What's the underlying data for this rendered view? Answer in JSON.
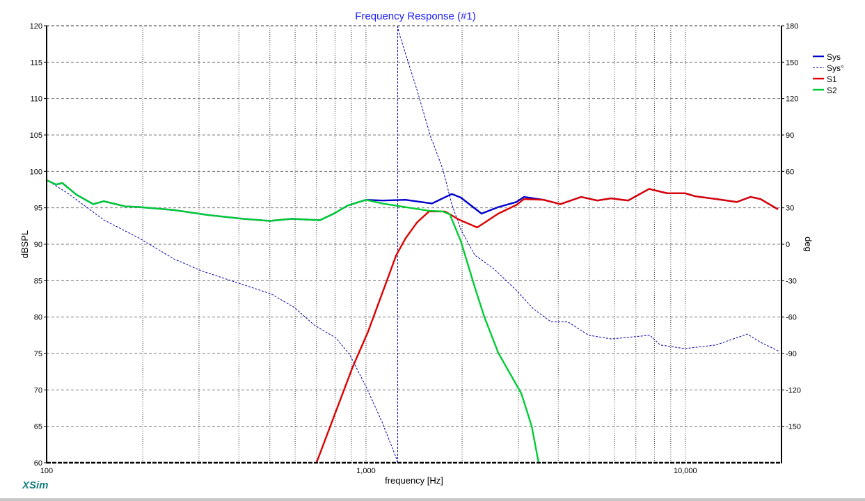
{
  "chart_data": {
    "type": "line",
    "title": "Frequency Response (#1)",
    "xlabel": "frequency [Hz]",
    "ylabel": "dBSPL",
    "y2label": "deg",
    "xscale": "log",
    "xlim": [
      100,
      20000
    ],
    "ylim": [
      60,
      120
    ],
    "y2lim": [
      -180,
      180
    ],
    "grid": true,
    "legend_position": "top-right",
    "x_tick_labels": [
      {
        "value": 100,
        "label": "100"
      },
      {
        "value": 1000,
        "label": "1,000"
      },
      {
        "value": 10000,
        "label": "10,000"
      }
    ],
    "y_ticks": [
      60,
      65,
      70,
      75,
      80,
      85,
      90,
      95,
      100,
      105,
      110,
      115,
      120
    ],
    "y2_ticks": [
      -150,
      -120,
      -90,
      -60,
      -30,
      0,
      30,
      60,
      90,
      120,
      150,
      180
    ],
    "series": [
      {
        "name": "Sys",
        "axis": "left",
        "color": "#0000cc",
        "style": "solid",
        "x": [
          100,
          107,
          112,
          124,
          140,
          151,
          165,
          176,
          195,
          250,
          321,
          412,
          500,
          585,
          717,
          793,
          875,
          1000,
          1125,
          1330,
          1610,
          1856,
          1982,
          2300,
          2595,
          2958,
          3125,
          3600,
          4060,
          4720,
          5300,
          5850,
          6620,
          7700,
          8760,
          9970,
          10700,
          12500,
          14500,
          16000,
          17200,
          19500
        ],
        "y": [
          98.8,
          98.2,
          98.4,
          96.8,
          95.5,
          95.9,
          95.5,
          95.2,
          95.1,
          94.7,
          94.0,
          93.5,
          93.2,
          93.5,
          93.3,
          94.2,
          95.3,
          96.1,
          96.0,
          96.1,
          95.6,
          96.9,
          96.4,
          94.2,
          95.1,
          95.8,
          96.5,
          96.1,
          95.5,
          96.5,
          96.0,
          96.3,
          96.0,
          97.6,
          97.0,
          97.0,
          96.6,
          96.2,
          95.8,
          96.5,
          96.2,
          94.8
        ]
      },
      {
        "name": "Sys°",
        "axis": "right",
        "color": "#0000aa",
        "style": "dashed",
        "x": [
          100,
          118,
          151,
          195,
          250,
          306,
          399,
          505,
          596,
          692,
          804,
          889,
          1003,
          1125,
          1244,
          1269,
          1445,
          1597,
          1740,
          1856,
          1982,
          2192,
          2508,
          2958,
          3337,
          3800,
          4288,
          4980,
          5875,
          7745,
          8350,
          9950,
          12470,
          14130,
          15630,
          17260,
          19580
        ],
        "y": [
          53,
          41,
          20,
          5,
          -12,
          -22,
          -32,
          -41,
          -52,
          -67,
          -77,
          -91,
          -118,
          -147,
          -176,
          174,
          127,
          88,
          62,
          33,
          12,
          -9,
          -20,
          -38,
          -53,
          -64,
          -64,
          -75,
          -78,
          -75,
          -83,
          -86,
          -83,
          -78,
          -74,
          -81,
          -88
        ]
      },
      {
        "name": "S1",
        "axis": "left",
        "color": "#dd0000",
        "style": "solid",
        "x": [
          700,
          793,
          906,
          1015,
          1125,
          1244,
          1330,
          1445,
          1575,
          1770,
          1950,
          2230,
          2595,
          2958,
          3125,
          3600,
          4060,
          4720,
          5300,
          5850,
          6620,
          7700,
          8760,
          9970,
          10700,
          12500,
          14500,
          16000,
          17200,
          19500
        ],
        "y": [
          60,
          66.3,
          73,
          78,
          83.3,
          88.5,
          90.8,
          93.0,
          94.5,
          94.5,
          93.4,
          92.3,
          94.2,
          95.4,
          96.2,
          96.1,
          95.5,
          96.5,
          96.0,
          96.3,
          96.0,
          97.6,
          97.0,
          97.0,
          96.6,
          96.2,
          95.8,
          96.5,
          96.2,
          94.8
        ]
      },
      {
        "name": "S2",
        "axis": "left",
        "color": "#00cc33",
        "style": "solid",
        "x": [
          100,
          107,
          112,
          124,
          140,
          151,
          165,
          176,
          195,
          250,
          321,
          412,
          500,
          585,
          717,
          793,
          875,
          1000,
          1125,
          1575,
          1740,
          1830,
          1982,
          2192,
          2349,
          2595,
          3065,
          3304,
          3472
        ],
        "y": [
          98.8,
          98.2,
          98.4,
          96.8,
          95.5,
          95.9,
          95.5,
          95.2,
          95.1,
          94.7,
          94.0,
          93.5,
          93.2,
          93.5,
          93.3,
          94.2,
          95.3,
          96.1,
          95.6,
          94.6,
          94.5,
          94.1,
          90.4,
          84.1,
          80.0,
          75.1,
          69.5,
          65.0,
          60.0
        ]
      }
    ]
  },
  "logo": "XSim"
}
